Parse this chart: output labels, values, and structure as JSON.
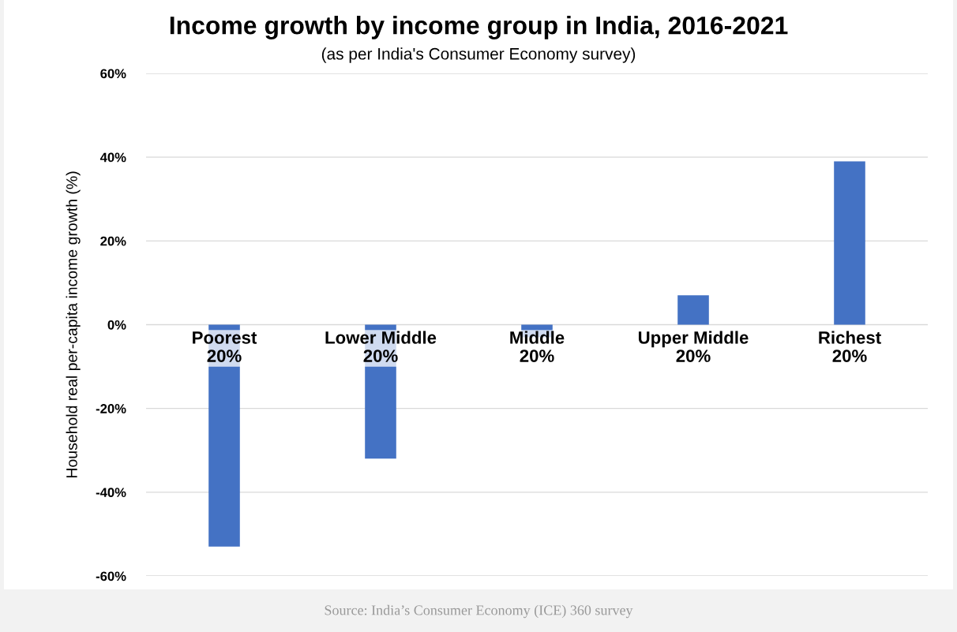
{
  "chart_data": {
    "type": "bar",
    "title": "Income growth by income group in India, 2016-2021",
    "subtitle": "(as per India's Consumer Economy survey)",
    "ylabel": "Household real per-capita income growth (%)",
    "categories": [
      "Poorest\n20%",
      "Lower Middle\n20%",
      "Middle\n20%",
      "Upper Middle\n20%",
      "Richest\n20%"
    ],
    "values": [
      -53,
      -32,
      -3,
      7,
      39
    ],
    "color": "#4472c4",
    "ylim": [
      -60,
      60
    ],
    "yticks": [
      {
        "value": -60,
        "label": "-60%"
      },
      {
        "value": -40,
        "label": "-40%"
      },
      {
        "value": -20,
        "label": "-20%"
      },
      {
        "value": 0,
        "label": "0%"
      },
      {
        "value": 20,
        "label": "20%"
      },
      {
        "value": 40,
        "label": "40%"
      },
      {
        "value": 60,
        "label": "60%"
      }
    ],
    "grid": "y",
    "annotations": [
      "Source: India’s Consumer Economy (ICE) 360 survey"
    ]
  }
}
